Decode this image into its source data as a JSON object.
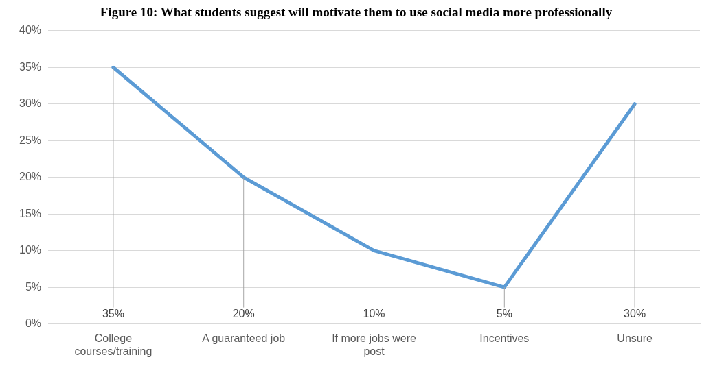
{
  "chart_data": {
    "type": "line",
    "title": "Figure 10: What students suggest will motivate them to use social media more professionally",
    "categories": [
      "College courses/training",
      "A guaranteed job",
      "If more jobs were post",
      "Incentives",
      "Unsure"
    ],
    "series": [
      {
        "color": "#5b9bd5",
        "values": [
          35,
          20,
          10,
          5,
          30
        ],
        "value_labels": [
          "35%",
          "20%",
          "10%",
          "5%",
          "30%"
        ]
      }
    ],
    "ylim": [
      0,
      40
    ],
    "yticks": [
      {
        "value": 0,
        "label": "0%"
      },
      {
        "value": 5,
        "label": "5%"
      },
      {
        "value": 10,
        "label": "10%"
      },
      {
        "value": 15,
        "label": "15%"
      },
      {
        "value": 20,
        "label": "20%"
      },
      {
        "value": 25,
        "label": "25%"
      },
      {
        "value": 30,
        "label": "30%"
      },
      {
        "value": 35,
        "label": "35%"
      },
      {
        "value": 40,
        "label": "40%"
      }
    ],
    "grid": "y",
    "legend": false,
    "marker": "none",
    "line_style": "solid"
  }
}
